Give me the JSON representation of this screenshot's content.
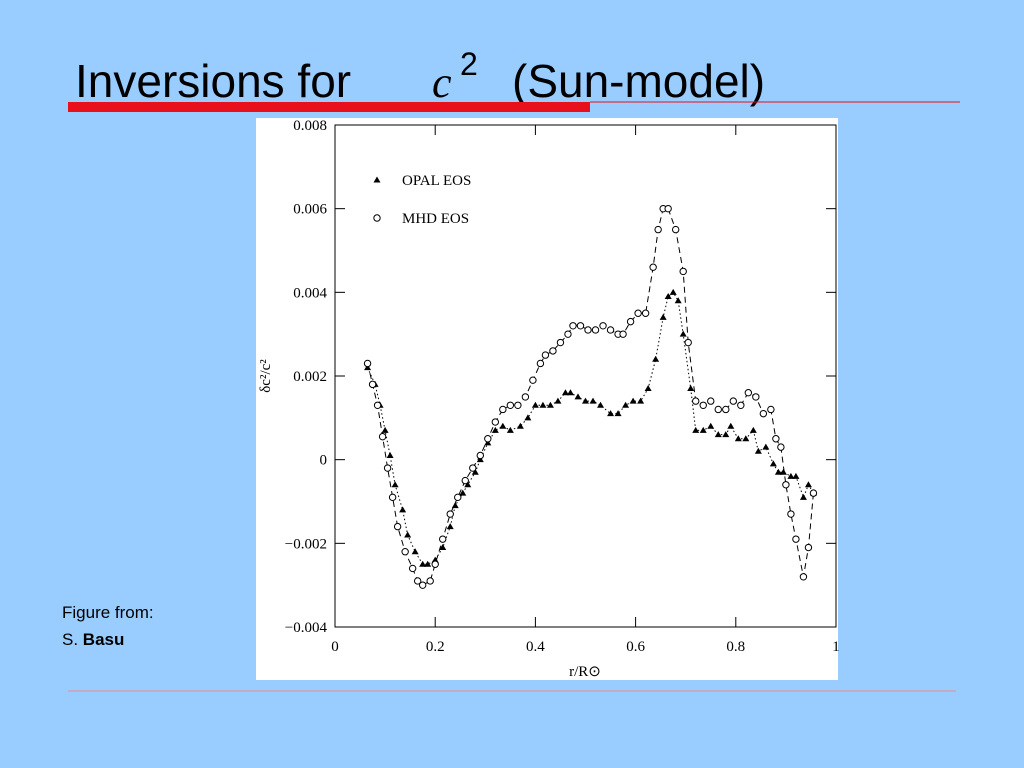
{
  "slide": {
    "title_lead": "Inversions for",
    "title_var": "c",
    "title_exp": "2",
    "title_tail": "(Sun-model)",
    "caption": "Figure from:",
    "credit_prefix": "S.",
    "credit_name": "Basu"
  },
  "chart_data": {
    "type": "scatter",
    "xlabel": "r/R⊙",
    "ylabel": "δc²/c²",
    "xlim": [
      0,
      1
    ],
    "xticks": [
      0,
      0.2,
      0.4,
      0.6,
      0.8,
      1
    ],
    "ylim": [
      -0.004,
      0.008
    ],
    "yticks": [
      {
        "value": -0.004,
        "label": "−0.004"
      },
      {
        "value": -0.002,
        "label": "−0.002"
      },
      0,
      0.002,
      0.004,
      0.006,
      0.008
    ],
    "series": [
      {
        "name": "OPAL EOS",
        "color": "#000000",
        "marker": "triangle",
        "line": "dotted",
        "x": [
          0.065,
          0.08,
          0.09,
          0.1,
          0.11,
          0.12,
          0.135,
          0.145,
          0.16,
          0.175,
          0.185,
          0.2,
          0.215,
          0.23,
          0.24,
          0.255,
          0.265,
          0.28,
          0.29,
          0.305,
          0.32,
          0.335,
          0.35,
          0.37,
          0.385,
          0.4,
          0.415,
          0.43,
          0.445,
          0.46,
          0.47,
          0.485,
          0.5,
          0.515,
          0.53,
          0.55,
          0.565,
          0.58,
          0.595,
          0.61,
          0.625,
          0.64,
          0.655,
          0.665,
          0.675,
          0.685,
          0.695,
          0.71,
          0.72,
          0.735,
          0.75,
          0.765,
          0.78,
          0.79,
          0.805,
          0.82,
          0.835,
          0.845,
          0.86,
          0.875,
          0.885,
          0.895,
          0.91,
          0.92,
          0.935,
          0.945,
          0.955
        ],
        "values": [
          0.0022,
          0.0018,
          0.0013,
          0.0007,
          0.0001,
          -0.0006,
          -0.0012,
          -0.0018,
          -0.0022,
          -0.0025,
          -0.0025,
          -0.0024,
          -0.0021,
          -0.0016,
          -0.0011,
          -0.0008,
          -0.0006,
          -0.0003,
          0.0,
          0.0004,
          0.0007,
          0.0008,
          0.0007,
          0.0008,
          0.001,
          0.0013,
          0.0013,
          0.0013,
          0.0014,
          0.0016,
          0.0016,
          0.0015,
          0.0014,
          0.0014,
          0.0013,
          0.0011,
          0.0011,
          0.0013,
          0.0014,
          0.0014,
          0.0017,
          0.0024,
          0.0034,
          0.0039,
          0.004,
          0.0038,
          0.003,
          0.0017,
          0.0007,
          0.0007,
          0.0008,
          0.0006,
          0.0006,
          0.0008,
          0.0005,
          0.0005,
          0.0007,
          0.0002,
          0.0003,
          -0.0001,
          -0.0003,
          -0.0003,
          -0.0004,
          -0.0004,
          -0.0009,
          -0.0006,
          -0.0008
        ]
      },
      {
        "name": "MHD EOS",
        "color": "#000000",
        "marker": "circle",
        "line": "dashed",
        "x": [
          0.065,
          0.075,
          0.085,
          0.095,
          0.105,
          0.115,
          0.125,
          0.14,
          0.155,
          0.165,
          0.175,
          0.19,
          0.2,
          0.215,
          0.23,
          0.245,
          0.26,
          0.275,
          0.29,
          0.305,
          0.32,
          0.335,
          0.35,
          0.365,
          0.38,
          0.395,
          0.41,
          0.42,
          0.435,
          0.45,
          0.465,
          0.475,
          0.49,
          0.505,
          0.52,
          0.535,
          0.55,
          0.565,
          0.575,
          0.59,
          0.605,
          0.62,
          0.635,
          0.645,
          0.655,
          0.665,
          0.68,
          0.695,
          0.705,
          0.72,
          0.735,
          0.75,
          0.765,
          0.78,
          0.795,
          0.81,
          0.825,
          0.84,
          0.855,
          0.87,
          0.88,
          0.89,
          0.9,
          0.91,
          0.92,
          0.935,
          0.945,
          0.955
        ],
        "values": [
          0.0023,
          0.0018,
          0.0013,
          0.00055,
          -0.0002,
          -0.0009,
          -0.0016,
          -0.0022,
          -0.0026,
          -0.0029,
          -0.003,
          -0.0029,
          -0.0025,
          -0.0019,
          -0.0013,
          -0.0009,
          -0.0005,
          -0.0002,
          0.0001,
          0.0005,
          0.0009,
          0.0012,
          0.0013,
          0.0013,
          0.0015,
          0.0019,
          0.0023,
          0.0025,
          0.0026,
          0.0028,
          0.003,
          0.0032,
          0.0032,
          0.0031,
          0.0031,
          0.0032,
          0.0031,
          0.003,
          0.003,
          0.0033,
          0.0035,
          0.0035,
          0.0046,
          0.0055,
          0.006,
          0.006,
          0.0055,
          0.0045,
          0.0028,
          0.0014,
          0.0013,
          0.0014,
          0.0012,
          0.0012,
          0.0014,
          0.0013,
          0.0016,
          0.0015,
          0.0011,
          0.0012,
          0.0005,
          0.0003,
          -0.0006,
          -0.0013,
          -0.0019,
          -0.0028,
          -0.0021,
          -0.0008
        ]
      }
    ]
  }
}
